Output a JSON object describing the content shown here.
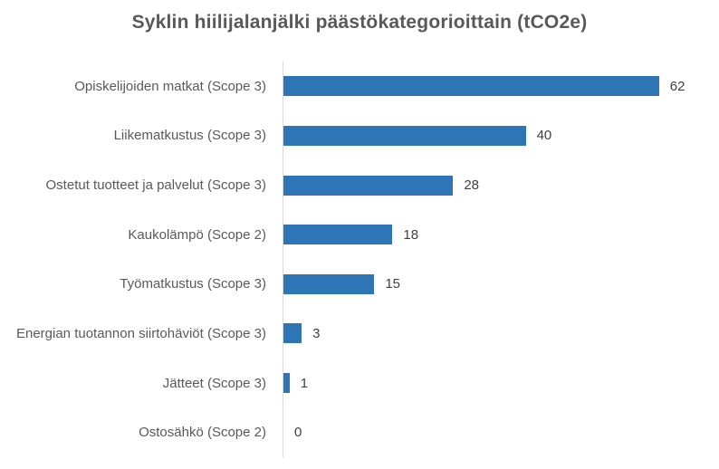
{
  "chart_data": {
    "type": "bar",
    "orientation": "horizontal",
    "title": "Syklin hiilijalanjälki päästökategorioittain (tCO2e)",
    "categories": [
      "Opiskelijoiden matkat (Scope 3)",
      "Liikematkustus (Scope 3)",
      "Ostetut tuotteet ja palvelut (Scope 3)",
      "Kaukolämpö (Scope 2)",
      "Työmatkustus (Scope 3)",
      "Energian tuotannon siirtohäviöt (Scope 3)",
      "Jätteet (Scope 3)",
      "Ostosähkö (Scope 2)"
    ],
    "values": [
      62,
      40,
      28,
      18,
      15,
      3,
      1,
      0
    ],
    "xlabel": "",
    "ylabel": "",
    "xlim": [
      0,
      62
    ],
    "grid": false,
    "legend": false,
    "data_labels": true
  },
  "colors": {
    "bar": "#2e75b6",
    "title_text": "#595959",
    "category_text": "#595959",
    "value_text": "#404040",
    "axis_line": "#d9d9d9",
    "background": "#ffffff"
  }
}
